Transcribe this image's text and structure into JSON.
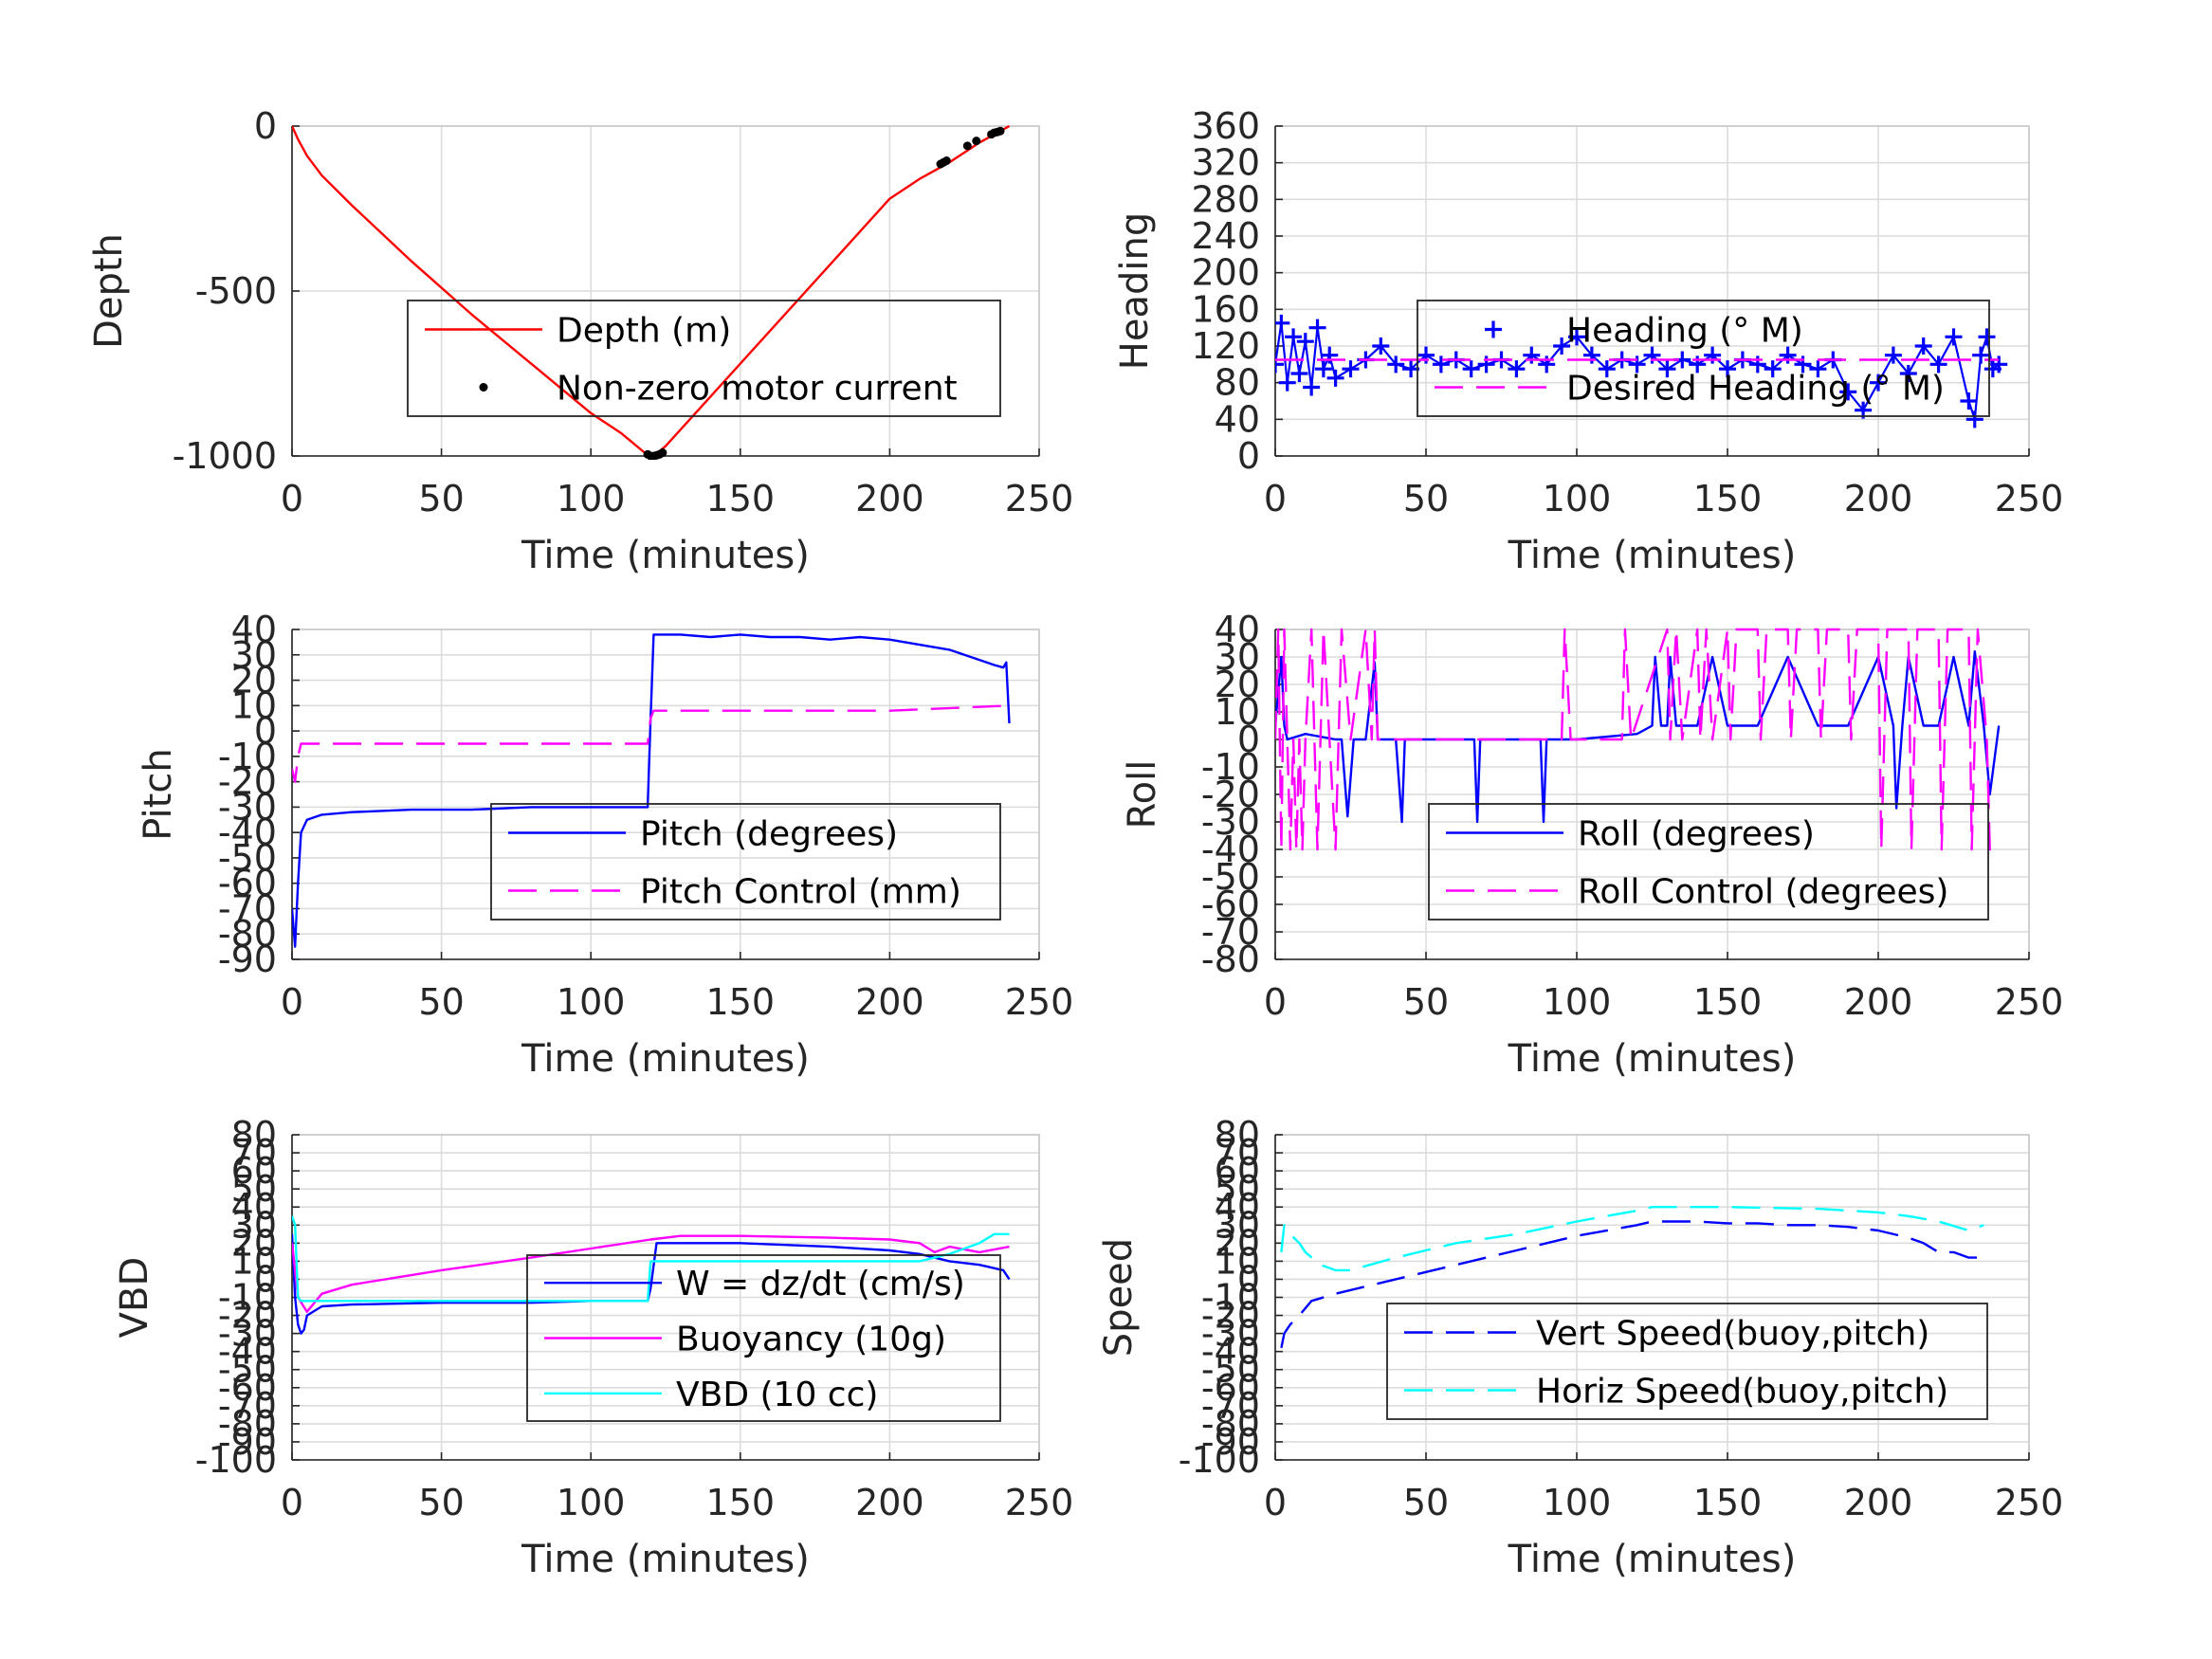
{
  "chart_data": [
    {
      "type": "line",
      "xlabel": "Time (minutes)",
      "ylabel": "Depth",
      "xlim": [
        0,
        250
      ],
      "ylim": [
        -1000,
        0
      ],
      "xticks": [
        0,
        50,
        100,
        150,
        200,
        250
      ],
      "yticks": [
        0,
        -500,
        -1000
      ],
      "grid": true,
      "legend": "inside-right",
      "series": [
        {
          "name": "Depth (m)",
          "color": "#ff0000",
          "style": "solid",
          "x": [
            0,
            2,
            5,
            10,
            20,
            40,
            60,
            80,
            100,
            110,
            118,
            121,
            125,
            140,
            160,
            180,
            200,
            210,
            220,
            230,
            240
          ],
          "y": [
            0,
            -40,
            -90,
            -150,
            -240,
            -410,
            -570,
            -720,
            -870,
            -930,
            -990,
            -1000,
            -970,
            -820,
            -620,
            -420,
            -220,
            -160,
            -110,
            -50,
            0
          ]
        },
        {
          "name": "Non-zero motor current",
          "color": "#000000",
          "style": "dots",
          "x": [
            119,
            120,
            121,
            122,
            123,
            124,
            217,
            218,
            219,
            226,
            229,
            234,
            235,
            236,
            237
          ],
          "y": [
            -995,
            -1000,
            -1000,
            -998,
            -995,
            -990,
            -115,
            -110,
            -105,
            -60,
            -45,
            -25,
            -20,
            -18,
            -15
          ]
        }
      ]
    },
    {
      "type": "line",
      "xlabel": "Time (minutes)",
      "ylabel": "Heading",
      "xlim": [
        0,
        250
      ],
      "ylim": [
        0,
        360
      ],
      "xticks": [
        0,
        50,
        100,
        150,
        200,
        250
      ],
      "yticks": [
        0,
        40,
        80,
        120,
        160,
        200,
        240,
        280,
        320,
        360
      ],
      "grid": true,
      "legend": "inside-right",
      "series": [
        {
          "name": "Heading (° M)",
          "color": "#0000ff",
          "style": "plus",
          "x": [
            0,
            2,
            4,
            6,
            8,
            10,
            12,
            14,
            16,
            18,
            20,
            25,
            30,
            35,
            40,
            45,
            50,
            55,
            60,
            65,
            70,
            75,
            80,
            85,
            90,
            95,
            100,
            105,
            110,
            115,
            120,
            125,
            130,
            135,
            140,
            145,
            150,
            155,
            160,
            165,
            170,
            175,
            180,
            185,
            190,
            195,
            200,
            205,
            210,
            215,
            220,
            225,
            230,
            232,
            234,
            236,
            238,
            240
          ],
          "y": [
            100,
            145,
            80,
            130,
            90,
            125,
            75,
            140,
            95,
            110,
            85,
            95,
            105,
            120,
            100,
            95,
            110,
            100,
            105,
            95,
            100,
            105,
            95,
            110,
            100,
            120,
            130,
            110,
            95,
            105,
            100,
            110,
            95,
            105,
            100,
            110,
            95,
            105,
            100,
            95,
            110,
            100,
            95,
            105,
            70,
            50,
            80,
            110,
            90,
            120,
            100,
            130,
            60,
            40,
            110,
            130,
            95,
            100
          ]
        },
        {
          "name": "Desired Heading (° M)",
          "color": "#ff00ff",
          "style": "dashed",
          "x": [
            0,
            240
          ],
          "y": [
            105,
            105
          ]
        }
      ]
    },
    {
      "type": "line",
      "xlabel": "Time (minutes)",
      "ylabel": "Pitch",
      "xlim": [
        0,
        250
      ],
      "ylim": [
        -90,
        40
      ],
      "xticks": [
        0,
        50,
        100,
        150,
        200,
        250
      ],
      "yticks": [
        40,
        30,
        20,
        10,
        0,
        -10,
        -20,
        -30,
        -40,
        -50,
        -60,
        -70,
        -80,
        -90
      ],
      "grid": true,
      "legend": "inside-right",
      "series": [
        {
          "name": "Pitch (degrees)",
          "color": "#0000ff",
          "style": "solid",
          "x": [
            0,
            1,
            2,
            3,
            5,
            10,
            20,
            40,
            60,
            80,
            100,
            119,
            120,
            121,
            122,
            130,
            140,
            150,
            160,
            170,
            180,
            190,
            200,
            210,
            220,
            230,
            235,
            238,
            239,
            240
          ],
          "y": [
            -70,
            -85,
            -60,
            -40,
            -35,
            -33,
            -32,
            -31,
            -31,
            -30,
            -30,
            -30,
            5,
            38,
            38,
            38,
            37,
            38,
            37,
            37,
            36,
            37,
            36,
            34,
            32,
            28,
            26,
            25,
            27,
            3
          ]
        },
        {
          "name": "Pitch Control (mm)",
          "color": "#ff00ff",
          "style": "dashed",
          "x": [
            0,
            1,
            2,
            3,
            10,
            119,
            120,
            121,
            200,
            240
          ],
          "y": [
            -15,
            -20,
            -10,
            -5,
            -5,
            -5,
            5,
            8,
            8,
            10
          ]
        }
      ]
    },
    {
      "type": "line",
      "xlabel": "Time (minutes)",
      "ylabel": "Roll",
      "xlim": [
        0,
        250
      ],
      "ylim": [
        -80,
        40
      ],
      "xticks": [
        0,
        50,
        100,
        150,
        200,
        250
      ],
      "yticks": [
        40,
        30,
        20,
        10,
        0,
        -10,
        -20,
        -30,
        -40,
        -50,
        -60,
        -70,
        -80
      ],
      "grid": true,
      "legend": "inside-right",
      "series": [
        {
          "name": "Roll (degrees)",
          "color": "#0000ff",
          "style": "solid",
          "x": [
            0,
            2,
            3,
            4,
            10,
            20,
            22,
            24,
            26,
            30,
            33,
            34,
            35,
            40,
            42,
            43,
            44,
            60,
            66,
            67,
            68,
            85,
            88,
            89,
            90,
            100,
            120,
            125,
            126,
            128,
            130,
            131,
            133,
            140,
            145,
            150,
            160,
            170,
            180,
            190,
            200,
            205,
            206,
            208,
            210,
            215,
            220,
            225,
            230,
            232,
            235,
            237,
            240
          ],
          "y": [
            5,
            30,
            5,
            0,
            2,
            0,
            0,
            -28,
            0,
            0,
            28,
            0,
            0,
            0,
            -30,
            0,
            0,
            0,
            0,
            -30,
            0,
            0,
            0,
            -30,
            0,
            0,
            2,
            5,
            30,
            5,
            5,
            30,
            5,
            5,
            30,
            5,
            5,
            30,
            5,
            5,
            30,
            5,
            -25,
            5,
            30,
            5,
            5,
            30,
            5,
            32,
            5,
            -20,
            5
          ]
        },
        {
          "name": "Roll Control (degrees)",
          "color": "#ff00ff",
          "style": "dashed",
          "x": [
            0,
            1,
            2,
            3,
            4,
            5,
            6,
            7,
            8,
            9,
            10,
            12,
            14,
            15,
            16,
            18,
            20,
            22,
            25,
            30,
            32,
            33,
            34,
            40,
            45,
            60,
            80,
            95,
            96,
            98,
            100,
            110,
            115,
            116,
            118,
            130,
            131,
            133,
            135,
            140,
            141,
            143,
            145,
            150,
            151,
            153,
            160,
            161,
            163,
            170,
            171,
            173,
            180,
            181,
            183,
            190,
            191,
            193,
            200,
            201,
            203,
            210,
            211,
            213,
            220,
            221,
            223,
            230,
            231,
            233,
            236,
            237,
            240
          ],
          "y": [
            0,
            40,
            -40,
            40,
            0,
            -40,
            0,
            -40,
            0,
            -40,
            0,
            40,
            -40,
            0,
            40,
            0,
            -40,
            40,
            0,
            40,
            0,
            40,
            0,
            0,
            0,
            0,
            0,
            0,
            40,
            0,
            0,
            0,
            0,
            40,
            0,
            40,
            0,
            40,
            0,
            40,
            0,
            40,
            0,
            40,
            0,
            40,
            40,
            0,
            40,
            40,
            0,
            40,
            40,
            0,
            40,
            40,
            0,
            40,
            40,
            -40,
            40,
            40,
            -40,
            40,
            40,
            -40,
            40,
            40,
            -40,
            40,
            0,
            -40,
            -40
          ]
        }
      ]
    },
    {
      "type": "line",
      "xlabel": "Time (minutes)",
      "ylabel": "VBD",
      "xlim": [
        0,
        250
      ],
      "ylim": [
        -100,
        80
      ],
      "xticks": [
        0,
        50,
        100,
        150,
        200,
        250
      ],
      "yticks": [
        80,
        70,
        60,
        50,
        40,
        30,
        20,
        10,
        0,
        -10,
        -20,
        -30,
        -40,
        -50,
        -60,
        -70,
        -80,
        -90,
        -100
      ],
      "grid": true,
      "legend": "inside-right",
      "series": [
        {
          "name": "W = dz/dt (cm/s)",
          "color": "#0000ff",
          "style": "solid",
          "x": [
            0,
            1,
            2,
            3,
            4,
            5,
            10,
            20,
            50,
            80,
            100,
            119,
            120,
            122,
            125,
            150,
            180,
            200,
            210,
            220,
            230,
            238,
            240
          ],
          "y": [
            25,
            -10,
            -25,
            -30,
            -28,
            -20,
            -15,
            -14,
            -13,
            -13,
            -12,
            -12,
            -5,
            20,
            20,
            20,
            18,
            16,
            14,
            10,
            8,
            5,
            0
          ]
        },
        {
          "name": "Buoyancy (10g)",
          "color": "#ff00ff",
          "style": "solid",
          "x": [
            0,
            2,
            5,
            10,
            20,
            50,
            80,
            100,
            120,
            130,
            150,
            180,
            200,
            210,
            215,
            220,
            230,
            240
          ],
          "y": [
            20,
            -10,
            -18,
            -8,
            -3,
            5,
            12,
            17,
            22,
            24,
            24,
            23,
            22,
            20,
            15,
            18,
            15,
            18
          ]
        },
        {
          "name": "VBD (10 cc)",
          "color": "#00ffff",
          "style": "solid",
          "x": [
            0,
            1,
            2,
            3,
            10,
            50,
            100,
            119,
            120,
            125,
            200,
            210,
            220,
            230,
            235,
            240
          ],
          "y": [
            35,
            30,
            -10,
            -12,
            -12,
            -12,
            -12,
            -12,
            10,
            10,
            10,
            10,
            14,
            20,
            25,
            25
          ]
        }
      ]
    },
    {
      "type": "line",
      "xlabel": "Time (minutes)",
      "ylabel": "Speed",
      "xlim": [
        0,
        250
      ],
      "ylim": [
        -100,
        80
      ],
      "xticks": [
        0,
        50,
        100,
        150,
        200,
        250
      ],
      "yticks": [
        80,
        70,
        60,
        50,
        40,
        30,
        20,
        10,
        0,
        -10,
        -20,
        -30,
        -40,
        -50,
        -60,
        -70,
        -80,
        -90,
        -100
      ],
      "grid": true,
      "legend": "inside-right",
      "series": [
        {
          "name": "Vert Speed(buoy,pitch)",
          "color": "#0000ff",
          "style": "dashed",
          "x": [
            2,
            3,
            5,
            8,
            12,
            20,
            40,
            60,
            80,
            100,
            120,
            125,
            130,
            140,
            150,
            160,
            170,
            180,
            190,
            200,
            210,
            215,
            220,
            225,
            230,
            235
          ],
          "y": [
            -38,
            -30,
            -25,
            -20,
            -12,
            -8,
            0,
            8,
            16,
            24,
            30,
            32,
            32,
            32,
            31,
            31,
            30,
            30,
            29,
            27,
            23,
            20,
            15,
            15,
            12,
            12
          ]
        },
        {
          "name": "Horiz Speed(buoy,pitch)",
          "color": "#00ffff",
          "style": "dashed",
          "x": [
            2,
            3,
            5,
            8,
            10,
            15,
            20,
            25,
            40,
            60,
            80,
            100,
            120,
            125,
            130,
            150,
            180,
            200,
            210,
            220,
            230,
            235
          ],
          "y": [
            15,
            30,
            25,
            20,
            15,
            8,
            5,
            5,
            12,
            20,
            25,
            32,
            38,
            40,
            40,
            40,
            39,
            37,
            35,
            32,
            27,
            30
          ]
        }
      ]
    }
  ]
}
